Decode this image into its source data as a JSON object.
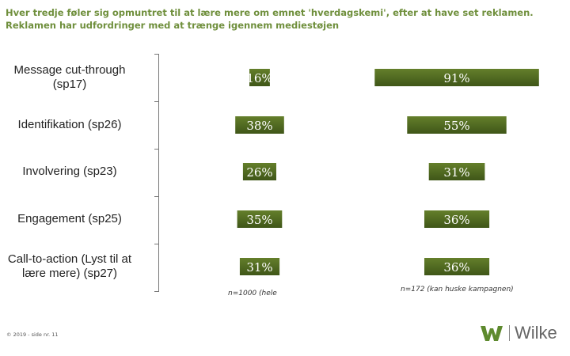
{
  "title": {
    "line1": "Hver tredje føler sig opmuntret til at lære mere om emnet 'hverdagskemi', efter at have set reklamen.",
    "line2": "Reklamen har udfordringer med at trænge igennem mediestøjen"
  },
  "chart_data": {
    "type": "bar",
    "orientation": "horizontal",
    "categories": [
      "Message cut-through (sp17)",
      "Identifikation (sp26)",
      "Involvering (sp23)",
      "Engagement (sp25)",
      "Call-to-action (Lyst til at lære mere) (sp27)"
    ],
    "category_lines": [
      [
        "Message cut-through",
        "(sp17)"
      ],
      [
        "Identifikation (sp26)"
      ],
      [
        "Involvering (sp23)"
      ],
      [
        "Engagement (sp25)"
      ],
      [
        "Call-to-action (Lyst til at",
        "lære mere) (sp27)"
      ]
    ],
    "series": [
      {
        "name": "n=1000 (hele",
        "values": [
          16,
          38,
          26,
          35,
          31
        ],
        "labels": [
          "16%",
          "38%",
          "26%",
          "35%",
          "31%"
        ]
      },
      {
        "name": "n=172 (kan huske kampagnen)",
        "values": [
          91,
          55,
          31,
          36,
          36
        ],
        "labels": [
          "91%",
          "55%",
          "31%",
          "36%",
          "36%"
        ]
      }
    ],
    "bar_color": "#4f6a1f",
    "label_color": "#ffffff"
  },
  "footer": "© 2019 - side nr. 11",
  "logo": {
    "text": "Wilke",
    "mark_color": "#5e8a2e"
  }
}
